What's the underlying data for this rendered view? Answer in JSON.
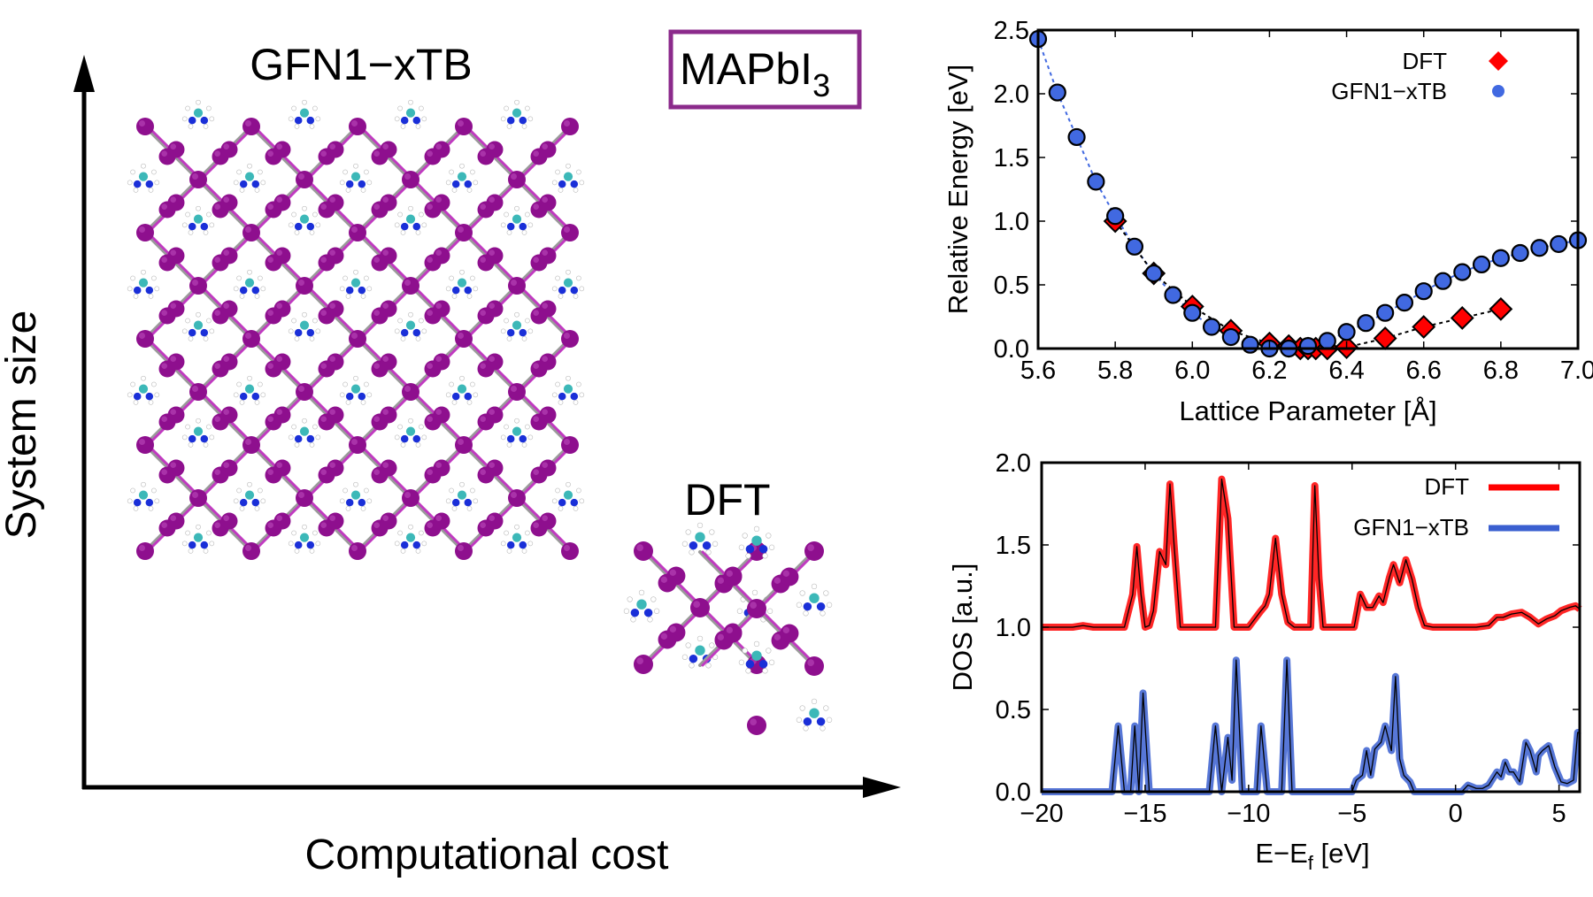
{
  "figure": {
    "material_label": "MAPbI",
    "material_subscript": "3",
    "material_box_color": "#8b2a8b",
    "left_panel": {
      "y_axis_label": "System size",
      "x_axis_label": "Computational cost",
      "large_structure_label": "GFN1−xTB",
      "small_structure_label": "DFT",
      "atom_colors": {
        "iodine": "#8e0f8e",
        "lead": "#5a0a5a",
        "bond_pb": "#9a9a9a",
        "bond_i": "#c03ac0",
        "carbon": "#3cb8b8",
        "nitrogen": "#1a2fd8",
        "hydrogen": "#ffffff"
      }
    }
  },
  "chart_data": [
    {
      "type": "scatter",
      "title": "",
      "xlabel": "Lattice Parameter [Å]",
      "ylabel": "Relative Energy [eV]",
      "xlim": [
        5.6,
        7.0
      ],
      "ylim": [
        0.0,
        2.5
      ],
      "xticks": [
        "5.6",
        "5.8",
        "6.0",
        "6.2",
        "6.4",
        "6.6",
        "6.8",
        "7.0"
      ],
      "yticks": [
        "0.0",
        "0.5",
        "1.0",
        "1.5",
        "2.0",
        "2.5"
      ],
      "grid": false,
      "legend_position": "top-right",
      "series": [
        {
          "name": "DFT",
          "marker": "diamond",
          "color": "#ff0000",
          "line": "black-dotted",
          "x": [
            5.8,
            5.9,
            6.0,
            6.1,
            6.2,
            6.25,
            6.28,
            6.3,
            6.32,
            6.35,
            6.4,
            6.5,
            6.6,
            6.7,
            6.8
          ],
          "y": [
            1.0,
            0.59,
            0.33,
            0.14,
            0.04,
            0.02,
            0.0,
            0.0,
            0.0,
            0.0,
            0.01,
            0.08,
            0.17,
            0.24,
            0.31
          ]
        },
        {
          "name": "GFN1−xTB",
          "marker": "circle",
          "color": "#4169e1",
          "line": "blue-dotted",
          "x": [
            5.6,
            5.65,
            5.7,
            5.75,
            5.8,
            5.85,
            5.9,
            5.95,
            6.0,
            6.05,
            6.1,
            6.15,
            6.2,
            6.25,
            6.3,
            6.35,
            6.4,
            6.45,
            6.5,
            6.55,
            6.6,
            6.65,
            6.7,
            6.75,
            6.8,
            6.85,
            6.9,
            6.95,
            7.0
          ],
          "y": [
            2.43,
            2.01,
            1.66,
            1.31,
            1.04,
            0.8,
            0.59,
            0.42,
            0.28,
            0.17,
            0.09,
            0.03,
            0.0,
            0.0,
            0.02,
            0.06,
            0.13,
            0.2,
            0.28,
            0.36,
            0.45,
            0.53,
            0.6,
            0.66,
            0.71,
            0.75,
            0.79,
            0.82,
            0.85
          ]
        }
      ]
    },
    {
      "type": "line",
      "title": "",
      "xlabel": "E−E",
      "xlabel_subscript": "f",
      "xlabel_suffix": " [eV]",
      "ylabel": "DOS [a.u.]",
      "xlim": [
        -20,
        6
      ],
      "ylim": [
        0.0,
        2.0
      ],
      "xticks": [
        "−20",
        "−15",
        "−10",
        "−5",
        "0",
        "5"
      ],
      "xtick_values": [
        -20,
        -15,
        -10,
        -5,
        0,
        5
      ],
      "yticks": [
        "0.0",
        "0.5",
        "1.0",
        "1.5",
        "2.0"
      ],
      "grid": false,
      "legend_position": "top-right",
      "series": [
        {
          "name": "DFT",
          "color": "#ff0000",
          "offset": 1.0,
          "x": [
            -20,
            -18.5,
            -18,
            -17.5,
            -16,
            -15.6,
            -15.4,
            -15.2,
            -15.0,
            -14.8,
            -14.6,
            -14.3,
            -14.0,
            -13.8,
            -13.6,
            -13.3,
            -13.0,
            -12.6,
            -12.2,
            -11.6,
            -11.3,
            -11.0,
            -10.7,
            -10.4,
            -10.0,
            -9.4,
            -9.2,
            -9.0,
            -8.7,
            -8.4,
            -8.1,
            -7.8,
            -7.4,
            -7.0,
            -6.8,
            -6.6,
            -6.4,
            -6.0,
            -4.9,
            -4.6,
            -4.3,
            -4.0,
            -3.7,
            -3.5,
            -3.2,
            -3.0,
            -2.7,
            -2.4,
            -2.1,
            -1.8,
            -1.5,
            -1.1,
            -0.6,
            0,
            1.0,
            1.6,
            2.0,
            2.3,
            2.7,
            3.2,
            3.6,
            4.0,
            4.4,
            4.8,
            5.1,
            5.5,
            5.8,
            6.0
          ],
          "y": [
            0.0,
            0.0,
            0.01,
            0.0,
            0.0,
            0.2,
            0.49,
            0.2,
            0.0,
            0.01,
            0.1,
            0.46,
            0.38,
            0.87,
            0.5,
            0.0,
            0.0,
            0.0,
            0.0,
            0.0,
            0.9,
            0.66,
            0.0,
            0.0,
            0.0,
            0.1,
            0.13,
            0.2,
            0.54,
            0.2,
            0.03,
            0.0,
            0.0,
            0.0,
            0.86,
            0.3,
            0.0,
            0.0,
            0.0,
            0.2,
            0.12,
            0.12,
            0.19,
            0.15,
            0.3,
            0.38,
            0.27,
            0.41,
            0.29,
            0.12,
            0.01,
            0.0,
            0.0,
            0.0,
            0.0,
            0.01,
            0.06,
            0.06,
            0.08,
            0.09,
            0.06,
            0.02,
            0.05,
            0.07,
            0.1,
            0.12,
            0.13,
            0.11
          ]
        },
        {
          "name": "GFN1−xTB",
          "color": "#3a5fd0",
          "offset": 0.0,
          "x": [
            -20,
            -16.6,
            -16.3,
            -16.0,
            -15.7,
            -15.5,
            -15.3,
            -15.1,
            -14.8,
            -14.4,
            -11.9,
            -11.6,
            -11.3,
            -11.0,
            -10.8,
            -10.6,
            -10.3,
            -10.0,
            -9.6,
            -9.4,
            -9.1,
            -8.4,
            -8.15,
            -7.9,
            -5.0,
            -4.8,
            -4.5,
            -4.3,
            -4.1,
            -3.9,
            -3.6,
            -3.4,
            -3.1,
            -2.9,
            -2.7,
            -2.5,
            -2.2,
            -2.0,
            -1.8,
            -1.5,
            -1.0,
            0.0,
            0.3,
            0.6,
            1.0,
            1.3,
            1.6,
            2.0,
            2.2,
            2.4,
            2.6,
            2.8,
            3.1,
            3.4,
            3.6,
            3.9,
            4.0,
            4.2,
            4.5,
            4.8,
            5.1,
            5.4,
            5.7,
            5.9,
            6.0
          ],
          "y": [
            0.0,
            0.0,
            0.4,
            0.0,
            0.0,
            0.4,
            0.0,
            0.6,
            0.0,
            0.0,
            0.0,
            0.4,
            0.0,
            0.33,
            0.07,
            0.8,
            0.0,
            0.0,
            0.0,
            0.4,
            0.0,
            0.0,
            0.8,
            0.0,
            0.0,
            0.07,
            0.1,
            0.25,
            0.1,
            0.26,
            0.3,
            0.4,
            0.25,
            0.7,
            0.2,
            0.1,
            0.06,
            0.0,
            0.0,
            0.0,
            0.0,
            0.0,
            0.0,
            0.04,
            0.02,
            0.02,
            0.04,
            0.12,
            0.09,
            0.18,
            0.12,
            0.12,
            0.06,
            0.3,
            0.25,
            0.12,
            0.22,
            0.25,
            0.28,
            0.15,
            0.06,
            0.05,
            0.07,
            0.36,
            0.36
          ]
        }
      ]
    }
  ]
}
